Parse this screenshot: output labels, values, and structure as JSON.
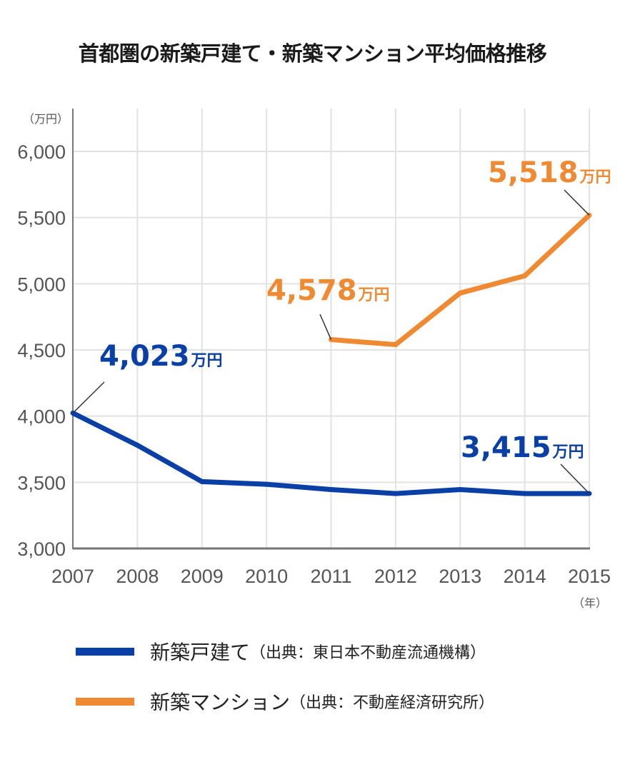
{
  "chart_data": {
    "type": "line",
    "title": "首都圏の新築戸建て・新築マンション平均価格推移",
    "ylabel": "（万円）",
    "xlabel": "（年）",
    "x": [
      "2007",
      "2008",
      "2009",
      "2010",
      "2011",
      "2012",
      "2013",
      "2014",
      "2015"
    ],
    "ylim": [
      3000,
      6000
    ],
    "yticks": [
      6000,
      5500,
      5000,
      4500,
      4000,
      3500,
      3000
    ],
    "ytick_labels": [
      "6,000",
      "5,500",
      "5,000",
      "4,500",
      "4,000",
      "3,500",
      "3,000"
    ],
    "grid": true,
    "legend_position": "bottom",
    "series": [
      {
        "name": "新築戸建て",
        "source": "（出典：東日本不動産流通機構）",
        "color": "#0a3fa6",
        "values": [
          4023,
          3780,
          3505,
          3485,
          3445,
          3415,
          3445,
          3415,
          3415
        ],
        "annotations": [
          {
            "x": "2007",
            "value": "4,023",
            "unit": "万円"
          },
          {
            "x": "2015",
            "value": "3,415",
            "unit": "万円"
          }
        ]
      },
      {
        "name": "新築マンション",
        "source": "（出典：不動産経済研究所）",
        "color": "#f08a32",
        "values": [
          null,
          null,
          null,
          null,
          4578,
          4540,
          4930,
          5060,
          5518
        ],
        "annotations": [
          {
            "x": "2011",
            "value": "4,578",
            "unit": "万円"
          },
          {
            "x": "2015",
            "value": "5,518",
            "unit": "万円"
          }
        ]
      }
    ]
  }
}
